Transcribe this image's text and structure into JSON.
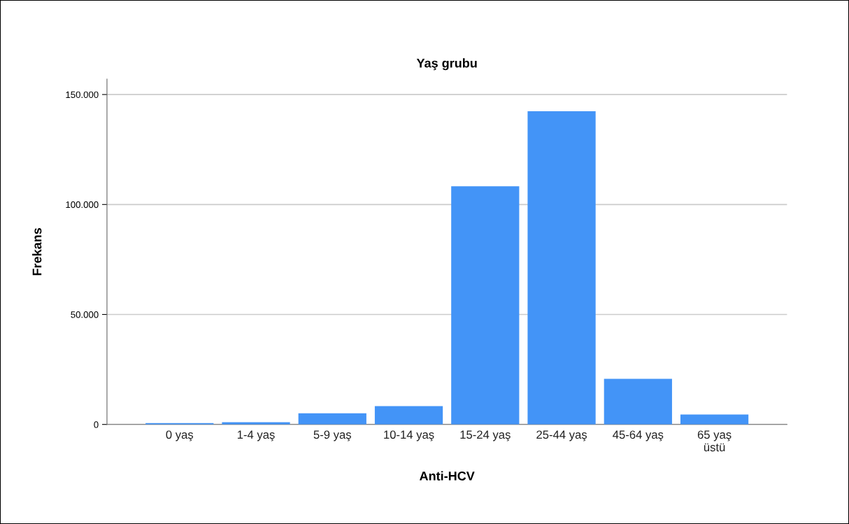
{
  "chart_data": {
    "type": "bar",
    "title": "Yaş grubu",
    "xlabel": "Anti-HCV",
    "ylabel": "Frekans",
    "categories": [
      "0 yaş",
      "1-4 yaş",
      "5-9 yaş",
      "10-14 yaş",
      "15-24 yaş",
      "25-44 yaş",
      "45-64 yaş",
      "65 yaş\nüstü"
    ],
    "values": [
      600,
      1000,
      5100,
      8300,
      108300,
      142400,
      20700,
      4500
    ],
    "color": "#4394f7",
    "ylim": [
      0,
      157000
    ],
    "yticks": [
      {
        "value": 0,
        "label": "0"
      },
      {
        "value": 50000,
        "label": "50.000"
      },
      {
        "value": 100000,
        "label": "100.000"
      },
      {
        "value": 150000,
        "label": "150.000"
      }
    ],
    "grid": "y"
  }
}
